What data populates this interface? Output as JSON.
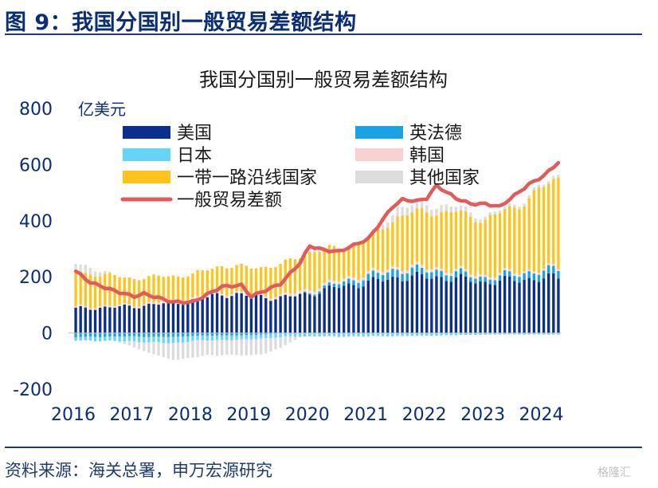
{
  "figure": {
    "heading": "图 9：我国分国别一般贸易差额结构",
    "source": "资料来源：海关总署，申万宏源研究",
    "watermark": "格隆汇"
  },
  "colors": {
    "us": "#0d2f8c",
    "ger_fr_uk": "#1aa2e2",
    "japan": "#66d4f5",
    "korea": "#f7d0d2",
    "belt_road": "#ffc31d",
    "other": "#dcdcdc",
    "total": "#e25b5b",
    "axis_text": "#0a2d78"
  },
  "chart_data": {
    "type": "bar",
    "stacked": true,
    "title": "我国分国别一般贸易差额结构",
    "ylabel": "亿美元",
    "ylim": [
      -200,
      800
    ],
    "yticks": [
      800,
      600,
      400,
      200,
      0,
      -200
    ],
    "xticks": [
      "2016",
      "2017",
      "2018",
      "2019",
      "2020",
      "2021",
      "2022",
      "2023",
      "2024"
    ],
    "x_start": "2016-01",
    "periods": 100,
    "legend": [
      {
        "key": "us",
        "label": "美国",
        "kind": "bar"
      },
      {
        "key": "ger_fr_uk",
        "label": "英法德",
        "kind": "bar"
      },
      {
        "key": "japan",
        "label": "日本",
        "kind": "bar"
      },
      {
        "key": "korea",
        "label": "韩国",
        "kind": "bar"
      },
      {
        "key": "belt_road",
        "label": "一带一路沿线国家",
        "kind": "bar"
      },
      {
        "key": "other",
        "label": "其他国家",
        "kind": "bar"
      },
      {
        "key": "total",
        "label": "一般贸易差额",
        "kind": "line"
      }
    ],
    "series_anchors": {
      "us": [
        [
          0,
          87
        ],
        [
          12,
          95
        ],
        [
          24,
          115
        ],
        [
          30,
          140
        ],
        [
          36,
          132
        ],
        [
          42,
          125
        ],
        [
          48,
          140
        ],
        [
          54,
          165
        ],
        [
          60,
          180
        ],
        [
          66,
          198
        ],
        [
          72,
          200
        ],
        [
          78,
          195
        ],
        [
          84,
          180
        ],
        [
          90,
          190
        ],
        [
          99,
          197
        ]
      ],
      "ger_fr_uk": [
        [
          0,
          -15
        ],
        [
          12,
          -12
        ],
        [
          20,
          -15
        ],
        [
          24,
          -10
        ],
        [
          36,
          -8
        ],
        [
          48,
          5
        ],
        [
          54,
          14
        ],
        [
          60,
          22
        ],
        [
          66,
          28
        ],
        [
          72,
          24
        ],
        [
          78,
          20
        ],
        [
          84,
          16
        ],
        [
          90,
          20
        ],
        [
          99,
          30
        ]
      ],
      "japan": [
        [
          0,
          -12
        ],
        [
          12,
          -18
        ],
        [
          20,
          -22
        ],
        [
          24,
          -18
        ],
        [
          36,
          -15
        ],
        [
          48,
          -12
        ],
        [
          60,
          -12
        ],
        [
          72,
          -10
        ],
        [
          84,
          -6
        ],
        [
          90,
          -5
        ],
        [
          99,
          -6
        ]
      ],
      "korea": [
        [
          0,
          5
        ],
        [
          12,
          5
        ],
        [
          24,
          8
        ],
        [
          36,
          5
        ],
        [
          48,
          10
        ],
        [
          60,
          10
        ],
        [
          72,
          10
        ],
        [
          84,
          8
        ],
        [
          99,
          6
        ]
      ],
      "belt_road": [
        [
          0,
          125
        ],
        [
          12,
          95
        ],
        [
          24,
          85
        ],
        [
          30,
          95
        ],
        [
          36,
          95
        ],
        [
          42,
          110
        ],
        [
          48,
          135
        ],
        [
          54,
          115
        ],
        [
          60,
          120
        ],
        [
          66,
          180
        ],
        [
          72,
          200
        ],
        [
          78,
          205
        ],
        [
          84,
          200
        ],
        [
          90,
          230
        ],
        [
          99,
          320
        ]
      ],
      "other": [
        [
          0,
          35
        ],
        [
          6,
          10
        ],
        [
          12,
          -20
        ],
        [
          18,
          -55
        ],
        [
          24,
          -60
        ],
        [
          30,
          -50
        ],
        [
          36,
          -60
        ],
        [
          42,
          -40
        ],
        [
          48,
          15
        ],
        [
          54,
          -5
        ],
        [
          60,
          5
        ],
        [
          66,
          30
        ],
        [
          72,
          25
        ],
        [
          78,
          20
        ],
        [
          84,
          10
        ],
        [
          90,
          10
        ],
        [
          99,
          10
        ]
      ],
      "total": [
        [
          0,
          220
        ],
        [
          3,
          180
        ],
        [
          8,
          150
        ],
        [
          12,
          130
        ],
        [
          14,
          140
        ],
        [
          20,
          110
        ],
        [
          24,
          110
        ],
        [
          30,
          165
        ],
        [
          34,
          170
        ],
        [
          36,
          130
        ],
        [
          42,
          175
        ],
        [
          46,
          250
        ],
        [
          48,
          310
        ],
        [
          51,
          295
        ],
        [
          54,
          290
        ],
        [
          60,
          335
        ],
        [
          65,
          450
        ],
        [
          67,
          475
        ],
        [
          70,
          470
        ],
        [
          72,
          480
        ],
        [
          74,
          525
        ],
        [
          78,
          480
        ],
        [
          81,
          460
        ],
        [
          84,
          460
        ],
        [
          87,
          450
        ],
        [
          90,
          490
        ],
        [
          93,
          530
        ],
        [
          96,
          560
        ],
        [
          99,
          608
        ]
      ]
    }
  }
}
